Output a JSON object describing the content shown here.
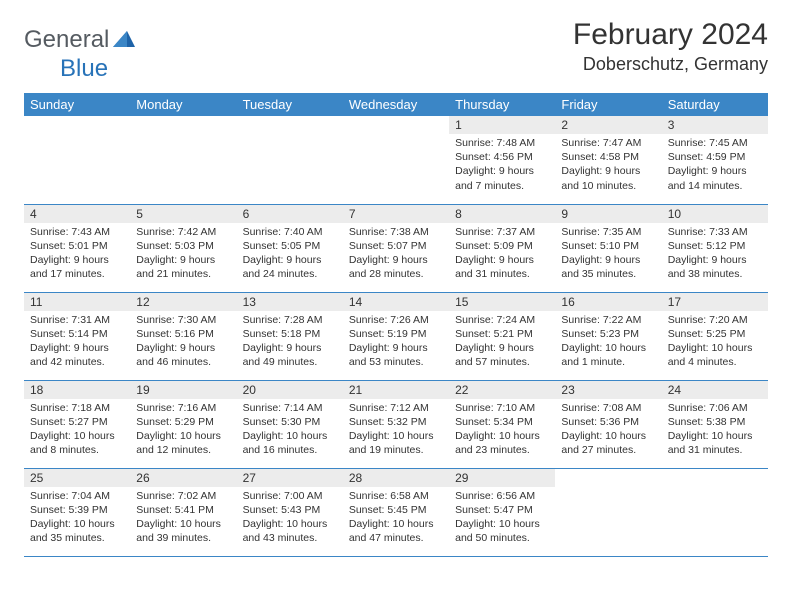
{
  "logo": {
    "general": "General",
    "blue": "Blue"
  },
  "title": "February 2024",
  "location": "Doberschutz, Germany",
  "colors": {
    "header_bg": "#3b86c6",
    "header_text": "#ffffff",
    "daynum_bg": "#ececec",
    "row_divider": "#3b86c6",
    "text": "#333333",
    "logo_gray": "#555b61",
    "logo_blue": "#2873b8",
    "background": "#ffffff"
  },
  "typography": {
    "title_fontsize": 30,
    "location_fontsize": 18,
    "dayheader_fontsize": 13,
    "daynum_fontsize": 12,
    "body_fontsize": 10.5,
    "logo_fontsize": 24
  },
  "day_headers": [
    "Sunday",
    "Monday",
    "Tuesday",
    "Wednesday",
    "Thursday",
    "Friday",
    "Saturday"
  ],
  "weeks": [
    [
      null,
      null,
      null,
      null,
      {
        "n": "1",
        "sunrise": "Sunrise: 7:48 AM",
        "sunset": "Sunset: 4:56 PM",
        "day1": "Daylight: 9 hours",
        "day2": "and 7 minutes."
      },
      {
        "n": "2",
        "sunrise": "Sunrise: 7:47 AM",
        "sunset": "Sunset: 4:58 PM",
        "day1": "Daylight: 9 hours",
        "day2": "and 10 minutes."
      },
      {
        "n": "3",
        "sunrise": "Sunrise: 7:45 AM",
        "sunset": "Sunset: 4:59 PM",
        "day1": "Daylight: 9 hours",
        "day2": "and 14 minutes."
      }
    ],
    [
      {
        "n": "4",
        "sunrise": "Sunrise: 7:43 AM",
        "sunset": "Sunset: 5:01 PM",
        "day1": "Daylight: 9 hours",
        "day2": "and 17 minutes."
      },
      {
        "n": "5",
        "sunrise": "Sunrise: 7:42 AM",
        "sunset": "Sunset: 5:03 PM",
        "day1": "Daylight: 9 hours",
        "day2": "and 21 minutes."
      },
      {
        "n": "6",
        "sunrise": "Sunrise: 7:40 AM",
        "sunset": "Sunset: 5:05 PM",
        "day1": "Daylight: 9 hours",
        "day2": "and 24 minutes."
      },
      {
        "n": "7",
        "sunrise": "Sunrise: 7:38 AM",
        "sunset": "Sunset: 5:07 PM",
        "day1": "Daylight: 9 hours",
        "day2": "and 28 minutes."
      },
      {
        "n": "8",
        "sunrise": "Sunrise: 7:37 AM",
        "sunset": "Sunset: 5:09 PM",
        "day1": "Daylight: 9 hours",
        "day2": "and 31 minutes."
      },
      {
        "n": "9",
        "sunrise": "Sunrise: 7:35 AM",
        "sunset": "Sunset: 5:10 PM",
        "day1": "Daylight: 9 hours",
        "day2": "and 35 minutes."
      },
      {
        "n": "10",
        "sunrise": "Sunrise: 7:33 AM",
        "sunset": "Sunset: 5:12 PM",
        "day1": "Daylight: 9 hours",
        "day2": "and 38 minutes."
      }
    ],
    [
      {
        "n": "11",
        "sunrise": "Sunrise: 7:31 AM",
        "sunset": "Sunset: 5:14 PM",
        "day1": "Daylight: 9 hours",
        "day2": "and 42 minutes."
      },
      {
        "n": "12",
        "sunrise": "Sunrise: 7:30 AM",
        "sunset": "Sunset: 5:16 PM",
        "day1": "Daylight: 9 hours",
        "day2": "and 46 minutes."
      },
      {
        "n": "13",
        "sunrise": "Sunrise: 7:28 AM",
        "sunset": "Sunset: 5:18 PM",
        "day1": "Daylight: 9 hours",
        "day2": "and 49 minutes."
      },
      {
        "n": "14",
        "sunrise": "Sunrise: 7:26 AM",
        "sunset": "Sunset: 5:19 PM",
        "day1": "Daylight: 9 hours",
        "day2": "and 53 minutes."
      },
      {
        "n": "15",
        "sunrise": "Sunrise: 7:24 AM",
        "sunset": "Sunset: 5:21 PM",
        "day1": "Daylight: 9 hours",
        "day2": "and 57 minutes."
      },
      {
        "n": "16",
        "sunrise": "Sunrise: 7:22 AM",
        "sunset": "Sunset: 5:23 PM",
        "day1": "Daylight: 10 hours",
        "day2": "and 1 minute."
      },
      {
        "n": "17",
        "sunrise": "Sunrise: 7:20 AM",
        "sunset": "Sunset: 5:25 PM",
        "day1": "Daylight: 10 hours",
        "day2": "and 4 minutes."
      }
    ],
    [
      {
        "n": "18",
        "sunrise": "Sunrise: 7:18 AM",
        "sunset": "Sunset: 5:27 PM",
        "day1": "Daylight: 10 hours",
        "day2": "and 8 minutes."
      },
      {
        "n": "19",
        "sunrise": "Sunrise: 7:16 AM",
        "sunset": "Sunset: 5:29 PM",
        "day1": "Daylight: 10 hours",
        "day2": "and 12 minutes."
      },
      {
        "n": "20",
        "sunrise": "Sunrise: 7:14 AM",
        "sunset": "Sunset: 5:30 PM",
        "day1": "Daylight: 10 hours",
        "day2": "and 16 minutes."
      },
      {
        "n": "21",
        "sunrise": "Sunrise: 7:12 AM",
        "sunset": "Sunset: 5:32 PM",
        "day1": "Daylight: 10 hours",
        "day2": "and 19 minutes."
      },
      {
        "n": "22",
        "sunrise": "Sunrise: 7:10 AM",
        "sunset": "Sunset: 5:34 PM",
        "day1": "Daylight: 10 hours",
        "day2": "and 23 minutes."
      },
      {
        "n": "23",
        "sunrise": "Sunrise: 7:08 AM",
        "sunset": "Sunset: 5:36 PM",
        "day1": "Daylight: 10 hours",
        "day2": "and 27 minutes."
      },
      {
        "n": "24",
        "sunrise": "Sunrise: 7:06 AM",
        "sunset": "Sunset: 5:38 PM",
        "day1": "Daylight: 10 hours",
        "day2": "and 31 minutes."
      }
    ],
    [
      {
        "n": "25",
        "sunrise": "Sunrise: 7:04 AM",
        "sunset": "Sunset: 5:39 PM",
        "day1": "Daylight: 10 hours",
        "day2": "and 35 minutes."
      },
      {
        "n": "26",
        "sunrise": "Sunrise: 7:02 AM",
        "sunset": "Sunset: 5:41 PM",
        "day1": "Daylight: 10 hours",
        "day2": "and 39 minutes."
      },
      {
        "n": "27",
        "sunrise": "Sunrise: 7:00 AM",
        "sunset": "Sunset: 5:43 PM",
        "day1": "Daylight: 10 hours",
        "day2": "and 43 minutes."
      },
      {
        "n": "28",
        "sunrise": "Sunrise: 6:58 AM",
        "sunset": "Sunset: 5:45 PM",
        "day1": "Daylight: 10 hours",
        "day2": "and 47 minutes."
      },
      {
        "n": "29",
        "sunrise": "Sunrise: 6:56 AM",
        "sunset": "Sunset: 5:47 PM",
        "day1": "Daylight: 10 hours",
        "day2": "and 50 minutes."
      },
      null,
      null
    ]
  ]
}
